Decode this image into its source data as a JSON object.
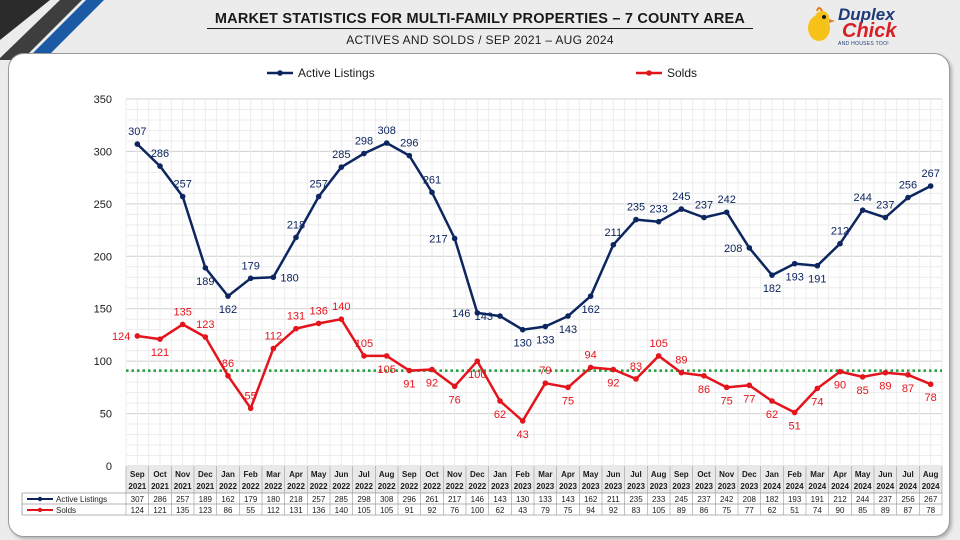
{
  "header": {
    "title": "MARKET STATISTICS FOR MULTI-FAMILY PROPERTIES – 7 COUNTY AREA",
    "subtitle": "ACTIVES AND SOLDS / SEP 2021 – AUG 2024"
  },
  "logo": {
    "line1": "Duplex",
    "line2": "Chick",
    "tagline": "AND HOUSES TOO!"
  },
  "colors": {
    "active": "#0d2660",
    "solds": "#e4141c",
    "avg": "#1e9e3e",
    "grid": "#dcdcdc"
  },
  "chart_data": {
    "type": "line",
    "title": "MARKET STATISTICS FOR MULTI-FAMILY PROPERTIES – 7 COUNTY AREA",
    "subtitle": "ACTIVES AND SOLDS / SEP 2021 – AUG 2024",
    "ylim": [
      0,
      350
    ],
    "yticks": [
      "0",
      "50",
      "100",
      "150",
      "200",
      "250",
      "300",
      "350"
    ],
    "grid": true,
    "legend_position": "top",
    "months": [
      "Sep",
      "Oct",
      "Nov",
      "Dec",
      "Jan",
      "Feb",
      "Mar",
      "Apr",
      "May",
      "Jun",
      "Jul",
      "Aug",
      "Sep",
      "Oct",
      "Nov",
      "Dec",
      "Jan",
      "Feb",
      "Mar",
      "Apr",
      "May",
      "Jun",
      "Jul",
      "Aug",
      "Sep",
      "Oct",
      "Nov",
      "Dec",
      "Jan",
      "Feb",
      "Mar",
      "Apr",
      "May",
      "Jun",
      "Jul",
      "Aug"
    ],
    "years": [
      "2021",
      "2021",
      "2021",
      "2021",
      "2022",
      "2022",
      "2022",
      "2022",
      "2022",
      "2022",
      "2022",
      "2022",
      "2022",
      "2022",
      "2022",
      "2022",
      "2023",
      "2023",
      "2023",
      "2023",
      "2023",
      "2023",
      "2023",
      "2023",
      "2023",
      "2023",
      "2023",
      "2023",
      "2024",
      "2024",
      "2024",
      "2024",
      "2024",
      "2024",
      "2024",
      "2024"
    ],
    "reference_line": {
      "value": 91,
      "style": "dotted"
    },
    "series": [
      {
        "name": "Active Listings",
        "values": [
          307,
          286,
          257,
          189,
          162,
          179,
          180,
          218,
          257,
          285,
          298,
          308,
          296,
          261,
          217,
          146,
          143,
          130,
          133,
          143,
          162,
          211,
          235,
          233,
          245,
          237,
          242,
          208,
          182,
          193,
          191,
          212,
          244,
          237,
          256,
          267
        ]
      },
      {
        "name": "Solds",
        "values": [
          124,
          121,
          135,
          123,
          86,
          55,
          112,
          131,
          136,
          140,
          105,
          105,
          91,
          92,
          76,
          100,
          62,
          43,
          79,
          75,
          94,
          92,
          83,
          105,
          89,
          86,
          75,
          77,
          62,
          51,
          74,
          90,
          85,
          89,
          87,
          78
        ]
      }
    ]
  }
}
